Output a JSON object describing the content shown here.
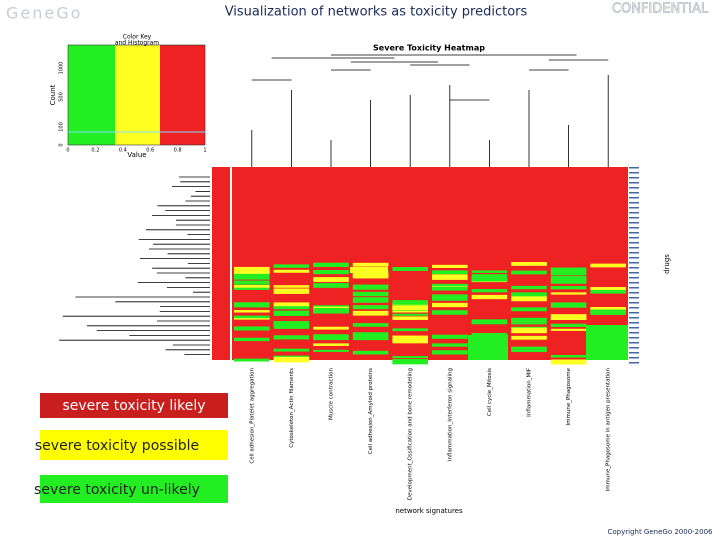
{
  "header": {
    "logo": "GeneGo",
    "title": "Visualization of networks as toxicity predictors",
    "badge": "CONFIDENTIAL"
  },
  "color_key": {
    "title_line1": "Color Key",
    "title_line2": "and Histogram",
    "y_label": "Count",
    "x_label": "Value",
    "y_ticks": [
      "0",
      "100",
      "500",
      "1000"
    ],
    "x_ticks": [
      "0",
      "0.2",
      "0.4",
      "0.6",
      "0.8",
      "1"
    ]
  },
  "heatmap": {
    "title": "Severe Toxicity Heatmap",
    "x_label": "network signatures",
    "y_label": "drugs",
    "columns": [
      "Cell adhesion_Platelet aggregation",
      "Cytoskeleton_Actin filaments",
      "Muscle contraction",
      "Cell adhesion_Amyloid proteins",
      "Development_Ossification and bone remodeling",
      "Inflammation_Interferon signaling",
      "Cell cycle_Mitosis",
      "Inflammation_MIF",
      "Immune_Phagosome",
      "Immune_Phagosome in antigen presentation"
    ]
  },
  "legend": [
    "severe toxicity likely",
    "severe toxicity possible",
    "severe toxicity un-likely"
  ],
  "footer": {
    "copyright": "Copyright GeneGo 2000-2006"
  }
}
